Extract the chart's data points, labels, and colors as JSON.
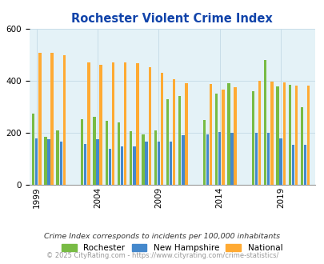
{
  "title": "Rochester Violent Crime Index",
  "years": [
    1999,
    2000,
    2001,
    2003,
    2004,
    2005,
    2006,
    2007,
    2008,
    2009,
    2010,
    2011,
    2013,
    2014,
    2015,
    2017,
    2018,
    2019,
    2020,
    2021
  ],
  "rochester": [
    275,
    185,
    210,
    252,
    263,
    247,
    240,
    205,
    195,
    210,
    330,
    342,
    250,
    352,
    390,
    360,
    480,
    380,
    385,
    300
  ],
  "new_hampshire": [
    178,
    175,
    165,
    157,
    175,
    138,
    147,
    148,
    165,
    165,
    165,
    190,
    193,
    202,
    200,
    200,
    200,
    180,
    153,
    153
  ],
  "national": [
    510,
    510,
    500,
    473,
    463,
    470,
    473,
    467,
    453,
    430,
    406,
    390,
    388,
    366,
    376,
    400,
    397,
    395,
    383,
    381
  ],
  "rochester_color": "#78bb44",
  "nh_color": "#4488cc",
  "national_color": "#ffaa33",
  "bg_color": "#e4f2f7",
  "title_color": "#1144aa",
  "ylim": [
    0,
    600
  ],
  "yticks": [
    0,
    200,
    400,
    600
  ],
  "tick_years": [
    1999,
    2004,
    2009,
    2014,
    2019
  ],
  "legend_labels": [
    "Rochester",
    "New Hampshire",
    "National"
  ],
  "footer_text1": "Crime Index corresponds to incidents per 100,000 inhabitants",
  "footer_text2": "© 2025 CityRating.com - https://www.cityrating.com/crime-statistics/"
}
